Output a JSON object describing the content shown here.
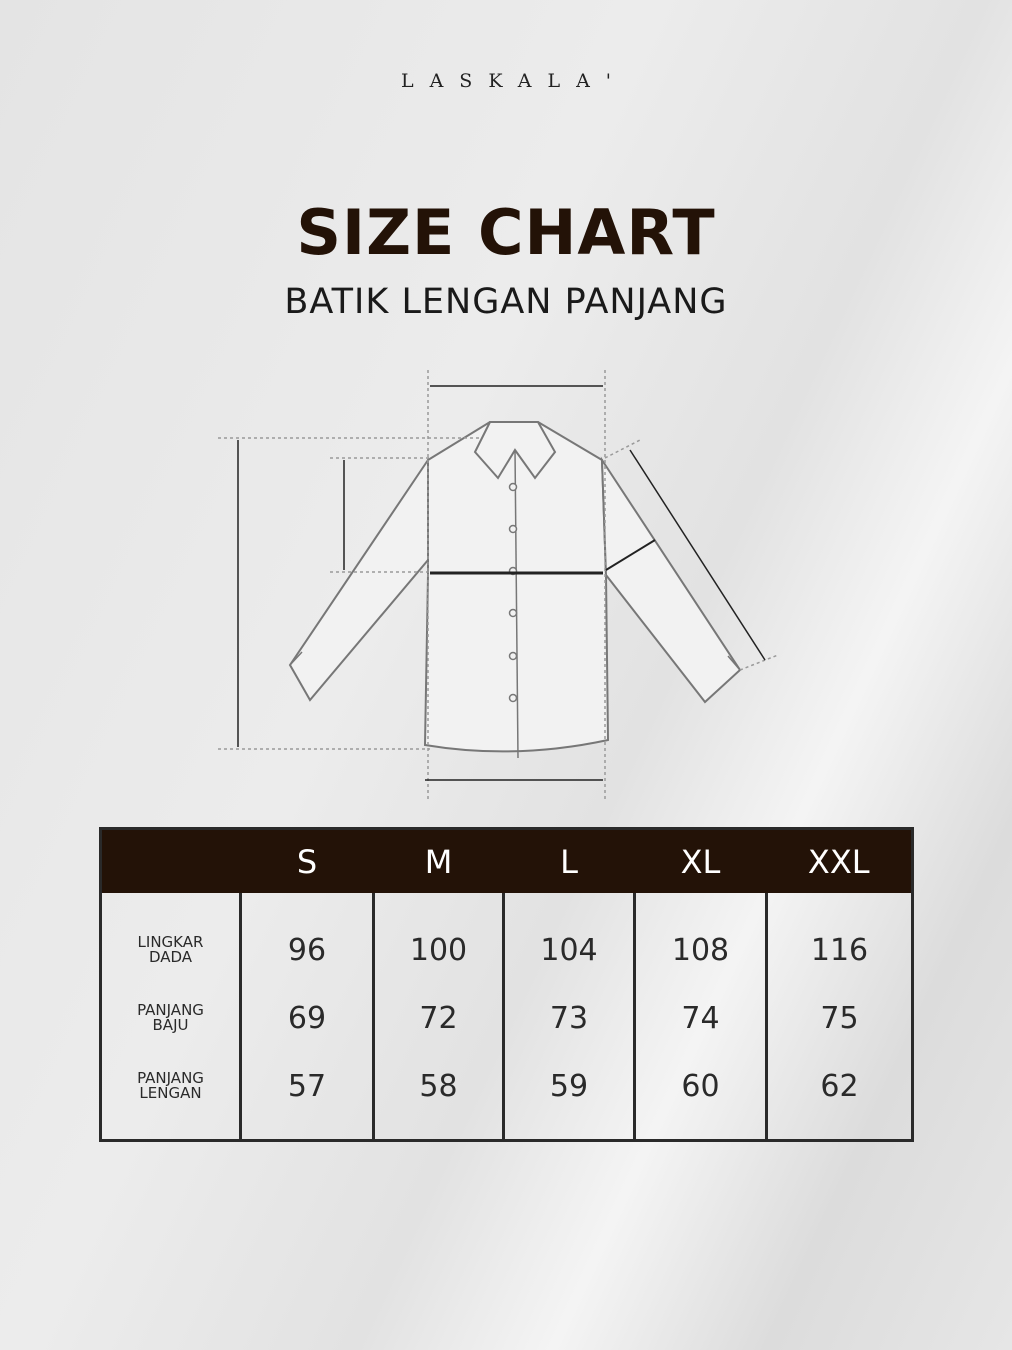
{
  "brand": "LASKALA'",
  "title": "SIZE CHART",
  "subtitle": "BATIK LENGAN PANJANG",
  "table": {
    "headers": [
      "",
      "S",
      "M",
      "L",
      "XL",
      "XXL"
    ],
    "rows": [
      {
        "label": "LINGKAR DADA",
        "values": [
          "96",
          "100",
          "104",
          "108",
          "116"
        ]
      },
      {
        "label": "PANJANG BAJU",
        "values": [
          "69",
          "72",
          "73",
          "74",
          "75"
        ]
      },
      {
        "label": "PANJANG LENGAN",
        "values": [
          "57",
          "58",
          "59",
          "60",
          "62"
        ]
      }
    ]
  },
  "colors": {
    "header_bg": "#231207",
    "title": "#231207"
  }
}
